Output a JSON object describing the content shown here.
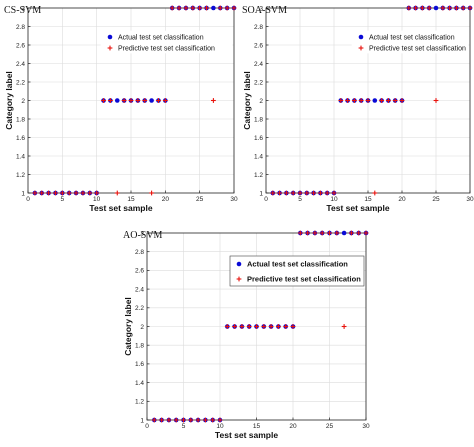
{
  "chart_data": [
    {
      "type": "scatter",
      "title": "CS-SVM",
      "xlabel": "Test set sample",
      "ylabel": "Category label",
      "xlim": [
        0,
        30
      ],
      "ylim": [
        1,
        3
      ],
      "xticks": [
        "0",
        "5",
        "10",
        "15",
        "20",
        "25",
        "30"
      ],
      "yticks": [
        "1",
        "1.2",
        "1.4",
        "1.6",
        "1.8",
        "2",
        "2.2",
        "2.4",
        "2.6",
        "2.8",
        "3"
      ],
      "grid": true,
      "legend_position": "top-right",
      "series": [
        {
          "name": "Actual test set classification",
          "marker": "dot",
          "color": "#0a0ad6",
          "x": [
            1,
            2,
            3,
            4,
            5,
            6,
            7,
            8,
            9,
            10,
            11,
            12,
            13,
            14,
            15,
            16,
            17,
            18,
            19,
            20,
            21,
            22,
            23,
            24,
            25,
            26,
            27,
            28,
            29,
            30
          ],
          "y": [
            1,
            1,
            1,
            1,
            1,
            1,
            1,
            1,
            1,
            1,
            2,
            2,
            2,
            2,
            2,
            2,
            2,
            2,
            2,
            2,
            3,
            3,
            3,
            3,
            3,
            3,
            3,
            3,
            3,
            3
          ]
        },
        {
          "name": "Predictive test set classification",
          "marker": "plus",
          "color": "#e8120c",
          "x": [
            1,
            2,
            3,
            4,
            5,
            6,
            7,
            8,
            9,
            10,
            11,
            12,
            13,
            14,
            15,
            16,
            17,
            18,
            19,
            20,
            21,
            22,
            23,
            24,
            25,
            26,
            27,
            28,
            29,
            30
          ],
          "y": [
            1,
            1,
            1,
            1,
            1,
            1,
            1,
            1,
            1,
            1,
            2,
            2,
            1,
            2,
            2,
            2,
            2,
            1,
            2,
            2,
            3,
            3,
            3,
            3,
            3,
            3,
            2,
            3,
            3,
            3
          ]
        }
      ]
    },
    {
      "type": "scatter",
      "title": "SOA-SVM",
      "xlabel": "Test set sample",
      "ylabel": "Category label",
      "xlim": [
        0,
        30
      ],
      "ylim": [
        1,
        3
      ],
      "xticks": [
        "0",
        "5",
        "10",
        "15",
        "20",
        "25",
        "30"
      ],
      "yticks": [
        "1",
        "1.2",
        "1.4",
        "1.6",
        "1.8",
        "2",
        "2.2",
        "2.4",
        "2.6",
        "2.8",
        "3"
      ],
      "grid": true,
      "legend_position": "top-right",
      "series": [
        {
          "name": "Actual test set classification",
          "marker": "dot",
          "color": "#0a0ad6",
          "x": [
            1,
            2,
            3,
            4,
            5,
            6,
            7,
            8,
            9,
            10,
            11,
            12,
            13,
            14,
            15,
            16,
            17,
            18,
            19,
            20,
            21,
            22,
            23,
            24,
            25,
            26,
            27,
            28,
            29,
            30
          ],
          "y": [
            1,
            1,
            1,
            1,
            1,
            1,
            1,
            1,
            1,
            1,
            2,
            2,
            2,
            2,
            2,
            2,
            2,
            2,
            2,
            2,
            3,
            3,
            3,
            3,
            3,
            3,
            3,
            3,
            3,
            3
          ]
        },
        {
          "name": "Predictive test set classification",
          "marker": "plus",
          "color": "#e8120c",
          "x": [
            1,
            2,
            3,
            4,
            5,
            6,
            7,
            8,
            9,
            10,
            11,
            12,
            13,
            14,
            15,
            16,
            17,
            18,
            19,
            20,
            21,
            22,
            23,
            24,
            25,
            26,
            27,
            28,
            29,
            30
          ],
          "y": [
            1,
            1,
            1,
            1,
            1,
            1,
            1,
            1,
            1,
            1,
            2,
            2,
            2,
            2,
            2,
            1,
            2,
            2,
            2,
            2,
            3,
            3,
            3,
            3,
            2,
            3,
            3,
            3,
            3,
            3
          ]
        }
      ]
    },
    {
      "type": "scatter",
      "title": "AO-SVM",
      "xlabel": "Test set sample",
      "ylabel": "Category label",
      "xlim": [
        0,
        30
      ],
      "ylim": [
        1,
        3
      ],
      "xticks": [
        "0",
        "5",
        "10",
        "15",
        "20",
        "25",
        "30"
      ],
      "yticks": [
        "1",
        "1.2",
        "1.4",
        "1.6",
        "1.8",
        "2",
        "2.2",
        "2.4",
        "2.6",
        "2.8",
        "3"
      ],
      "grid": true,
      "legend_position": "top-right",
      "series": [
        {
          "name": "Actual test set classification",
          "marker": "dot",
          "color": "#0a0ad6",
          "x": [
            1,
            2,
            3,
            4,
            5,
            6,
            7,
            8,
            9,
            10,
            11,
            12,
            13,
            14,
            15,
            16,
            17,
            18,
            19,
            20,
            21,
            22,
            23,
            24,
            25,
            26,
            27,
            28,
            29,
            30
          ],
          "y": [
            1,
            1,
            1,
            1,
            1,
            1,
            1,
            1,
            1,
            1,
            2,
            2,
            2,
            2,
            2,
            2,
            2,
            2,
            2,
            2,
            3,
            3,
            3,
            3,
            3,
            3,
            3,
            3,
            3,
            3
          ]
        },
        {
          "name": "Predictive test set classification",
          "marker": "plus",
          "color": "#e8120c",
          "x": [
            1,
            2,
            3,
            4,
            5,
            6,
            7,
            8,
            9,
            10,
            11,
            12,
            13,
            14,
            15,
            16,
            17,
            18,
            19,
            20,
            21,
            22,
            23,
            24,
            25,
            26,
            27,
            28,
            29,
            30
          ],
          "y": [
            1,
            1,
            1,
            1,
            1,
            1,
            1,
            1,
            1,
            1,
            2,
            2,
            2,
            2,
            2,
            2,
            2,
            2,
            2,
            2,
            3,
            3,
            3,
            3,
            3,
            3,
            2,
            3,
            3,
            3
          ]
        }
      ]
    }
  ]
}
